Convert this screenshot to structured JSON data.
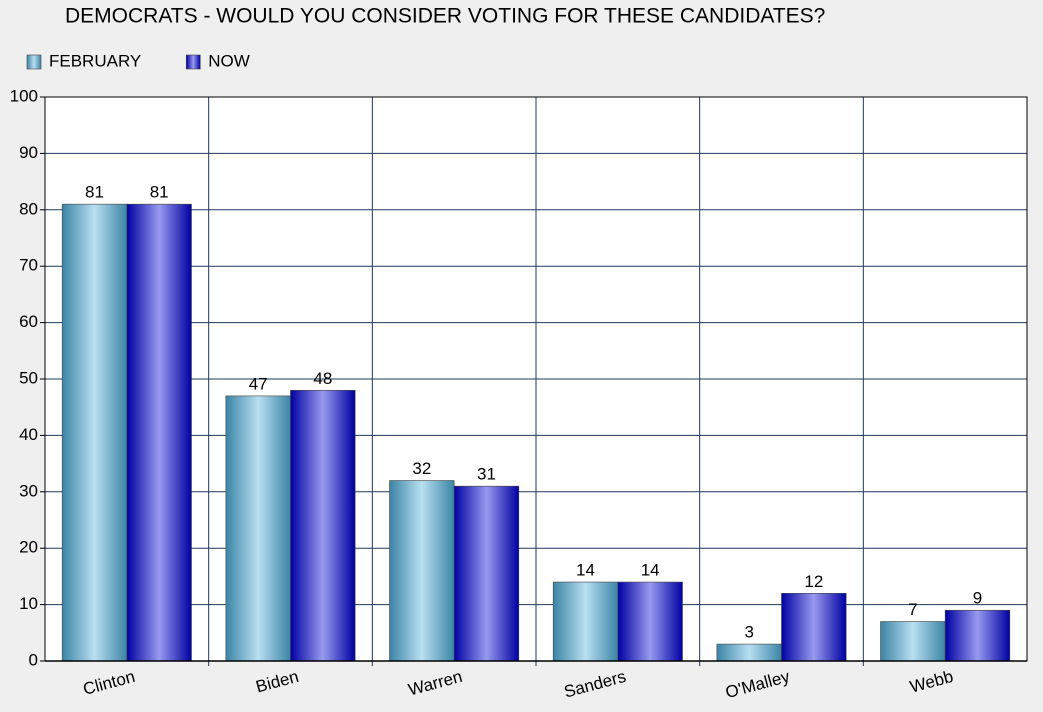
{
  "chart_data": {
    "type": "bar",
    "title": "DEMOCRATS - WOULD YOU CONSIDER VOTING FOR THESE CANDIDATES?",
    "categories": [
      "Clinton",
      "Biden",
      "Warren",
      "Sanders",
      "O'Malley",
      "Webb"
    ],
    "series": [
      {
        "name": "FEBRUARY",
        "color": "#4fb0dc",
        "values": [
          81,
          47,
          32,
          14,
          3,
          7
        ]
      },
      {
        "name": "NOW",
        "color": "#0000d8",
        "values": [
          81,
          48,
          31,
          14,
          12,
          9
        ]
      }
    ],
    "ylim": [
      0,
      100
    ],
    "yticks": [
      0,
      10,
      20,
      30,
      40,
      50,
      60,
      70,
      80,
      90,
      100
    ],
    "grid": true,
    "legend": "top-left"
  }
}
